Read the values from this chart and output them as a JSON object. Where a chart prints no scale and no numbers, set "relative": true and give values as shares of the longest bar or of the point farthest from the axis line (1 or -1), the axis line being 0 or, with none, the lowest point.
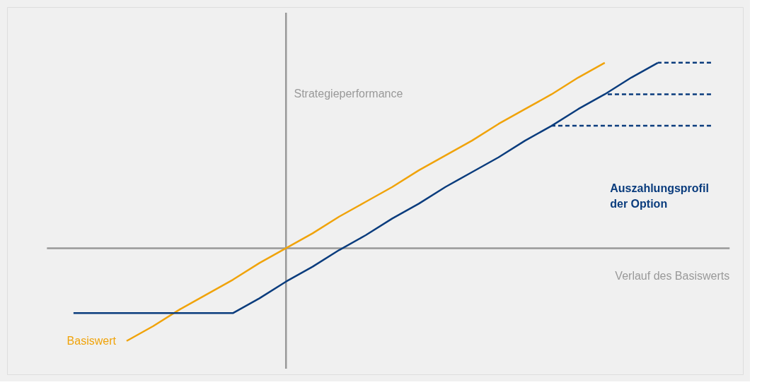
{
  "chart_data": {
    "type": "line",
    "relative": true,
    "xlabel": "Verlauf des Basiswerts",
    "ylabel": "Strategieperformance",
    "categories": [
      null,
      null,
      null,
      null,
      null,
      null,
      null,
      null,
      null,
      null,
      null,
      null,
      null,
      null,
      null,
      null,
      null,
      null,
      null,
      null,
      null,
      null,
      null,
      null,
      null
    ],
    "series": [
      {
        "name": "Basiswert",
        "color": "#f0a30a",
        "values": [
          null,
          null,
          -0.5,
          -0.42,
          -0.33,
          -0.25,
          -0.17,
          -0.08,
          0,
          0.08,
          0.17,
          0.25,
          0.33,
          0.42,
          0.5,
          0.58,
          0.67,
          0.75,
          0.83,
          0.92,
          1.0,
          null,
          null,
          null,
          null
        ]
      },
      {
        "name": "Auszahlungsprofil der Option",
        "color": "#0a3c7d",
        "values": [
          -0.35,
          -0.35,
          -0.35,
          -0.35,
          -0.35,
          -0.35,
          -0.35,
          -0.27,
          -0.18,
          -0.1,
          -0.01,
          0.07,
          0.16,
          0.24,
          0.33,
          0.41,
          0.49,
          0.58,
          0.66,
          0.75,
          0.83,
          0.92,
          1.0,
          null,
          null
        ]
      },
      {
        "color": "#0a3c7d",
        "line_style": "dashed",
        "values": [
          null,
          null,
          null,
          null,
          null,
          null,
          null,
          null,
          null,
          null,
          null,
          null,
          null,
          null,
          null,
          null,
          null,
          null,
          null,
          null,
          null,
          null,
          1.0,
          1.0,
          1.0
        ]
      },
      {
        "color": "#0a3c7d",
        "line_style": "dashed",
        "values": [
          null,
          null,
          null,
          null,
          null,
          null,
          null,
          null,
          null,
          null,
          null,
          null,
          null,
          null,
          null,
          null,
          null,
          null,
          null,
          null,
          0.83,
          0.83,
          0.83,
          0.83,
          0.83
        ]
      },
      {
        "color": "#0a3c7d",
        "line_style": "dashed",
        "values": [
          null,
          null,
          null,
          null,
          null,
          null,
          null,
          null,
          null,
          null,
          null,
          null,
          null,
          null,
          null,
          null,
          null,
          null,
          0.66,
          0.66,
          0.66,
          0.66,
          0.66,
          0.66,
          0.66
        ]
      }
    ]
  }
}
